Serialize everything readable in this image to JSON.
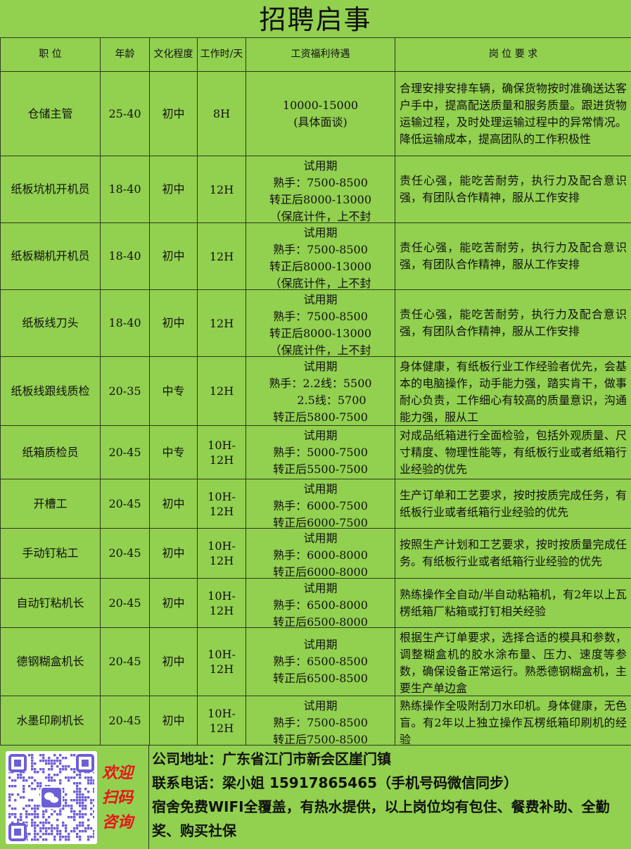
{
  "title": "招聘启事",
  "headers": [
    "职  位",
    "年龄",
    "文化程度",
    "工作时/天",
    "工资福利待遇",
    "岗 位 要 求"
  ],
  "rows": [
    {
      "position": "仓储主管",
      "age": "25-40",
      "education": "初中",
      "hours": "8H",
      "salary": [
        "10000-15000",
        "(具体面谈)"
      ],
      "requirement": "合理安排安排车辆，确保货物按时准确送达客户手中，提高配送质量和服务质量。跟进货物运输过程，及时处理运输过程中的异常情况。降低运输成本，提高团队的工作积极性"
    },
    {
      "position": "纸板坑机开机员",
      "age": "18-40",
      "education": "初中",
      "hours": "12H",
      "salary": [
        "试用期",
        "熟手：7500-8500",
        "转正后8000-13000",
        "（保底计件，上不封"
      ],
      "requirement": "责任心强，能吃苦耐劳，执行力及配合意识强，有团队合作精神，服从工作安排"
    },
    {
      "position": "纸板糊机开机员",
      "age": "18-40",
      "education": "初中",
      "hours": "12H",
      "salary": [
        "试用期",
        "熟手：7500-8500",
        "转正后8000-13000",
        "（保底计件，上不封"
      ],
      "requirement": "责任心强，能吃苦耐劳，执行力及配合意识强，有团队合作精神，服从工作安排"
    },
    {
      "position": "纸板线刀头",
      "age": "18-40",
      "education": "初中",
      "hours": "12H",
      "salary": [
        "试用期",
        "熟手：7500-8500",
        "转正后8000-13000",
        "（保底计件，上不封"
      ],
      "requirement": "责任心强，能吃苦耐劳，执行力及配合意识强，有团队合作精神，服从工作安排"
    },
    {
      "position": "纸板线跟线质检",
      "age": "20-35",
      "education": "中专",
      "hours": "12H",
      "salary": [
        "试用期",
        "熟手：2.2线：5500",
        "　　2.5线：5700",
        "转正后5800-7500"
      ],
      "requirement": "身体健康，有纸板行业工作经验者优先，会基本的电脑操作，动手能力强，踏实肯干，做事耐心负责，工作细心有较高的质量意识，沟通能力强，服从工"
    },
    {
      "position": "纸箱质检员",
      "age": "20-45",
      "education": "中专",
      "hours": "10H-12H",
      "salary": [
        "试用期",
        "熟手：5000-7500",
        "转正后5500-7500"
      ],
      "requirement": "对成品纸箱进行全面检验，包括外观质量、尺寸精度、物理性能等，有纸板行业或者纸箱行业经验的优先"
    },
    {
      "position": "开槽工",
      "age": "20-45",
      "education": "初中",
      "hours": "10H-12H",
      "salary": [
        "试用期",
        "熟手：6000-7500",
        "转正后6000-7500"
      ],
      "requirement": "生产订单和工艺要求，按时按质完成任务，有纸板行业或者纸箱行业经验的优先"
    },
    {
      "position": "手动钉粘工",
      "age": "20-45",
      "education": "初中",
      "hours": "10H-12H",
      "salary": [
        "试用期",
        "熟手：6000-8000",
        "转正后6000-8000"
      ],
      "requirement": "按照生产计划和工艺要求，按时按质量完成任务。有纸板行业或者纸箱行业经验的优先"
    },
    {
      "position": "自动钉粘机长",
      "age": "20-45",
      "education": "初中",
      "hours": "10H-12H",
      "salary": [
        "试用期",
        "熟手：6500-8000",
        "转正后6500-8000"
      ],
      "requirement": "熟练操作全自动/半自动粘箱机，有2年以上瓦楞纸箱厂粘箱或打钉相关经验"
    },
    {
      "position": "德钢糊盒机长",
      "age": "20-45",
      "education": "初中",
      "hours": "10H-12H",
      "salary": [
        "试用期",
        "熟手：6500-8500",
        "转正后6500-8500"
      ],
      "requirement": "根据生产订单要求，选择合适的模具和参数，调整糊盒机的胶水涂布量、压力、速度等参数，确保设备正常运行。熟悉德钢糊盒机，主要生产单边盒"
    },
    {
      "position": "水墨印刷机长",
      "age": "20-45",
      "education": "初中",
      "hours": "10H-12H",
      "salary": [
        "试用期",
        "熟手：7500-8500",
        "转正后7500-8500"
      ],
      "requirement": "熟练操作全吸附刮刀水印机。身体健康，无色盲。有2年以上独立操作瓦楞纸箱印刷机的经验"
    }
  ],
  "footer": {
    "welcome": [
      "欢迎",
      "扫码",
      "咨询"
    ],
    "address": "公司地址：广东省江门市新会区崖门镇",
    "phone": "联系电话：梁小姐 15917865465（手机号码微信同步）",
    "benefits": "宿舍免费WIFI全覆盖，有热水提供，以上岗位均有包住、餐费补助、全勤奖、购买社保"
  },
  "colors": {
    "background": "#92d050",
    "welcome": "#e8141b",
    "qr": "#6b5fd6"
  }
}
